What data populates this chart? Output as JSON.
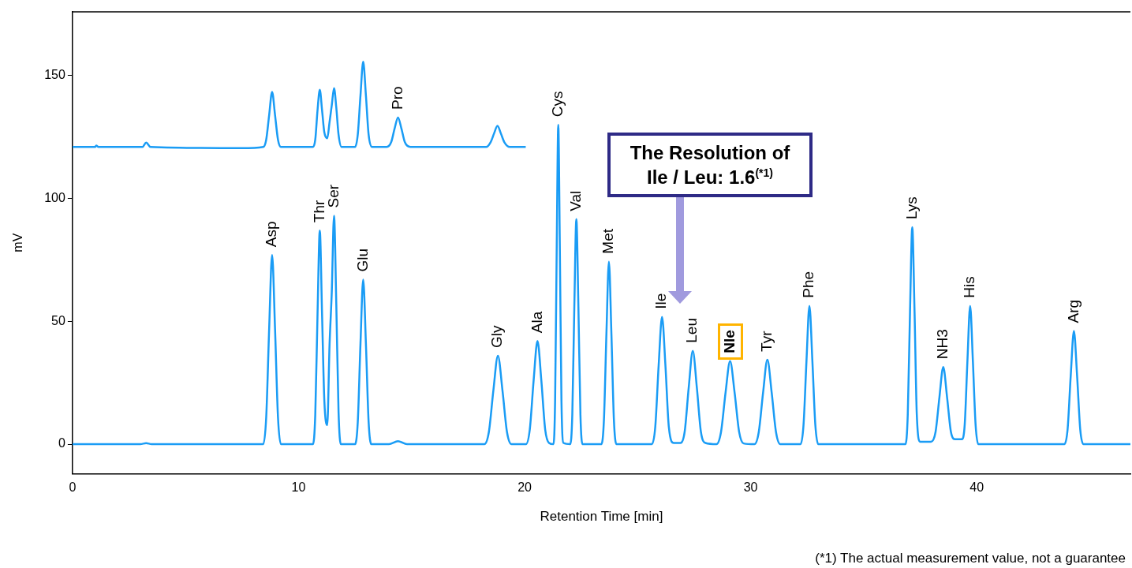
{
  "chart_data": {
    "type": "line",
    "xlabel": "Retention Time [min]",
    "ylabel": "mV",
    "xlim": [
      0,
      46.8
    ],
    "xticks": [
      0,
      10,
      20,
      30,
      40
    ],
    "ylim": [
      -12,
      176
    ],
    "yticks": [
      0,
      50,
      100,
      150
    ],
    "grid": false,
    "legend": false,
    "marker": "none",
    "line_style": "solid",
    "series": [
      {
        "color": "#1a9cf5",
        "x": [
          0,
          3.0,
          3.26,
          3.5,
          8.44,
          8.57,
          8.7,
          8.83,
          8.96,
          9.09,
          9.22,
          10.64,
          10.74,
          10.84,
          10.94,
          11.04,
          11.14,
          11.27,
          11.37,
          11.47,
          11.57,
          11.67,
          11.77,
          11.87,
          12.5,
          12.62,
          12.74,
          12.86,
          12.98,
          13.1,
          13.22,
          14.0,
          14.4,
          14.8,
          18.22,
          18.42,
          18.62,
          18.82,
          19.02,
          19.22,
          19.42,
          20.06,
          20.23,
          20.4,
          20.57,
          20.74,
          20.91,
          21.08,
          21.28,
          21.35,
          21.42,
          21.49,
          21.56,
          21.63,
          21.72,
          22.02,
          22.11,
          22.2,
          22.29,
          22.38,
          22.47,
          22.56,
          23.4,
          23.51,
          23.62,
          23.73,
          23.84,
          23.95,
          24.06,
          25.63,
          25.78,
          25.93,
          26.08,
          26.23,
          26.38,
          26.6,
          26.9,
          27.08,
          27.26,
          27.44,
          27.62,
          27.8,
          28.0,
          28.49,
          28.69,
          28.89,
          29.09,
          29.29,
          29.49,
          29.69,
          30.17,
          30.36,
          30.55,
          30.74,
          30.93,
          31.12,
          31.31,
          32.21,
          32.34,
          32.47,
          32.6,
          32.73,
          32.86,
          32.99,
          36.85,
          36.95,
          37.05,
          37.15,
          37.25,
          37.35,
          37.5,
          37.98,
          38.18,
          38.35,
          38.52,
          38.69,
          38.86,
          39.05,
          39.35,
          39.47,
          39.59,
          39.71,
          39.83,
          39.95,
          40.07,
          43.88,
          44.02,
          44.16,
          44.3,
          44.44,
          44.58,
          44.72,
          46.8
        ],
        "values": [
          0,
          0,
          0.4,
          0,
          0,
          11,
          47,
          77,
          47,
          11,
          0,
          0,
          12,
          53,
          87,
          53,
          18,
          7.8,
          40,
          62,
          93,
          57,
          13,
          0,
          0,
          9,
          41,
          67,
          41,
          9,
          0,
          0,
          1.2,
          0,
          0,
          5,
          22,
          36,
          22,
          5,
          0,
          0,
          6,
          26,
          42,
          26,
          6,
          0.5,
          0,
          18,
          79,
          130,
          79,
          18,
          0.5,
          0,
          12,
          56,
          91.6,
          56,
          12,
          0,
          0,
          10,
          45,
          74.3,
          45,
          10,
          0,
          0,
          7,
          32,
          51.8,
          32,
          7,
          0.5,
          0.5,
          5,
          23,
          38,
          23,
          5,
          0.5,
          0,
          5,
          21,
          33.8,
          21,
          5,
          0.3,
          0,
          5,
          21,
          34.4,
          21,
          5,
          0,
          0,
          8,
          34,
          56.3,
          34,
          8,
          0,
          0,
          12,
          54,
          88.3,
          54,
          12,
          1,
          1,
          5,
          19,
          31.4,
          19,
          5,
          2,
          2,
          8,
          34,
          56.3,
          34,
          8,
          0,
          0,
          6,
          28,
          46.1,
          28,
          6,
          0,
          0
        ]
      },
      {
        "color": "#1a9cf5",
        "x": [
          0,
          1.0,
          1.05,
          1.15,
          3.1,
          3.26,
          3.45,
          7.5,
          8.44,
          8.57,
          8.7,
          8.83,
          8.96,
          9.09,
          9.22,
          10.64,
          10.74,
          10.84,
          10.94,
          11.04,
          11.14,
          11.27,
          11.37,
          11.47,
          11.57,
          11.67,
          11.77,
          11.9,
          12.5,
          12.62,
          12.74,
          12.86,
          12.98,
          13.1,
          13.25,
          13.9,
          14.1,
          14.25,
          14.4,
          14.55,
          14.7,
          14.95,
          18.3,
          18.5,
          18.65,
          18.8,
          18.95,
          19.1,
          19.35,
          20.05
        ],
        "values": [
          121,
          121,
          121.6,
          121,
          121,
          122.8,
          121,
          120.5,
          121,
          124,
          134,
          143.4,
          134,
          124,
          121,
          121,
          124,
          136,
          144.3,
          136,
          127,
          124.5,
          131,
          138,
          144.9,
          137,
          126,
          121,
          121,
          126,
          142,
          155.7,
          142,
          126,
          121,
          121,
          123,
          128.5,
          133,
          128.5,
          123,
          121,
          121,
          123,
          126.5,
          129.6,
          126.5,
          123,
          121,
          121
        ]
      }
    ],
    "annotations": [
      "The Resolution of Ile / Leu: 1.6$^{(*1)}$",
      {
        "text": "Asp",
        "x": 8.83,
        "y": 77
      },
      {
        "text": "Thr",
        "x": 10.94,
        "y": 87
      },
      {
        "text": "Ser",
        "x": 11.57,
        "y": 93
      },
      {
        "text": "Glu",
        "x": 12.86,
        "y": 67
      },
      {
        "text": "Pro",
        "x": 14.4,
        "y": 133
      },
      {
        "text": "Gly",
        "x": 18.82,
        "y": 36
      },
      {
        "text": "Ala",
        "x": 20.57,
        "y": 42
      },
      {
        "text": "Cys",
        "x": 21.49,
        "y": 130
      },
      {
        "text": "Val",
        "x": 22.29,
        "y": 91.6
      },
      {
        "text": "Met",
        "x": 23.73,
        "y": 74.3
      },
      {
        "text": "Ile",
        "x": 26.08,
        "y": 51.8
      },
      {
        "text": "Leu",
        "x": 27.44,
        "y": 38
      },
      {
        "text": "Nle",
        "x": 29.09,
        "y": 33.8
      },
      {
        "text": "Tyr",
        "x": 30.74,
        "y": 34.4
      },
      {
        "text": "Phe",
        "x": 32.6,
        "y": 56.3
      },
      {
        "text": "Lys",
        "x": 37.15,
        "y": 88.3
      },
      {
        "text": "NH3",
        "x": 38.52,
        "y": 31.4
      },
      {
        "text": "His",
        "x": 39.71,
        "y": 56.3
      },
      {
        "text": "Arg",
        "x": 44.3,
        "y": 46.1
      },
      "(*1) The actual measurement value, not a guarantee"
    ]
  }
}
